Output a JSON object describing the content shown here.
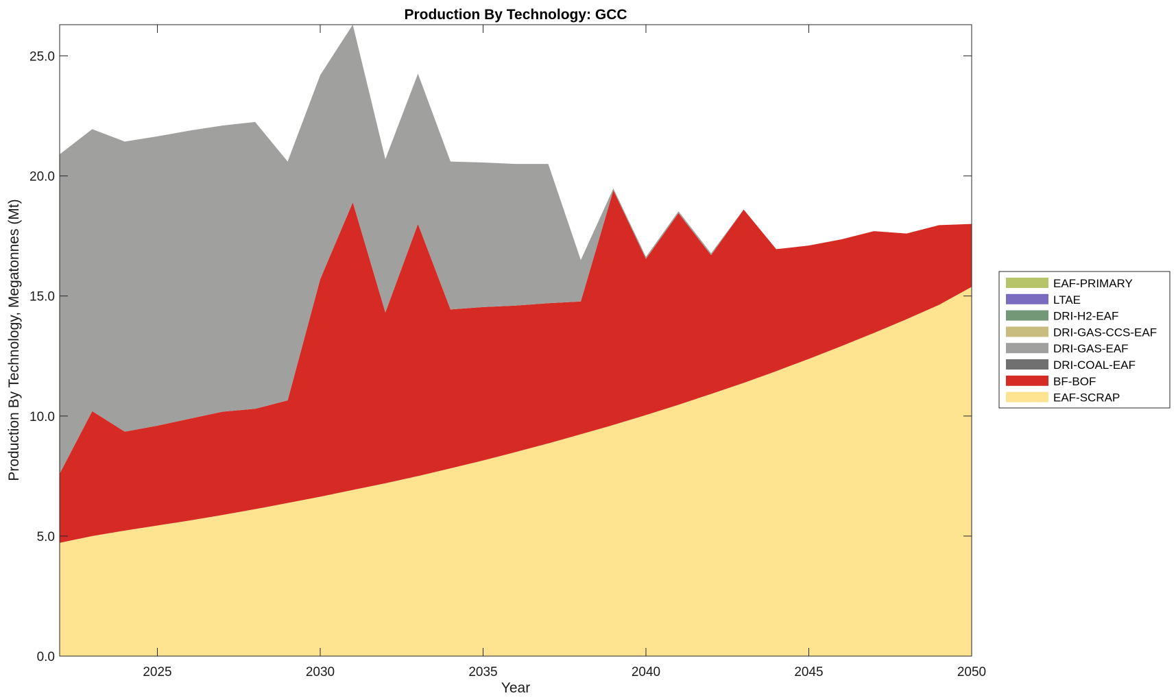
{
  "chart_data": {
    "type": "area",
    "stacked": true,
    "title": "Production By Technology: GCC",
    "xlabel": "Year",
    "ylabel": "Production By Technology, Megatonnes (Mt)",
    "xlim": [
      2022,
      2050
    ],
    "ylim": [
      0,
      26.3
    ],
    "xticks": [
      2025,
      2030,
      2035,
      2040,
      2045,
      2050
    ],
    "xtick_labels": [
      "2025",
      "2030",
      "2035",
      "2040",
      "2045",
      "2050"
    ],
    "yticks": [
      0,
      5,
      10,
      15,
      20,
      25
    ],
    "ytick_labels": [
      "0.0",
      "5.0",
      "10.0",
      "15.0",
      "20.0",
      "25.0"
    ],
    "legend_position": "right",
    "x": [
      2022,
      2023,
      2024,
      2025,
      2026,
      2027,
      2028,
      2029,
      2030,
      2031,
      2032,
      2033,
      2034,
      2035,
      2036,
      2037,
      2038,
      2039,
      2040,
      2041,
      2042,
      2043,
      2044,
      2045,
      2046,
      2047,
      2048,
      2049,
      2050
    ],
    "series": [
      {
        "name": "EAF-SCRAP",
        "color": "#fee391",
        "values": [
          4.72,
          5.0,
          5.23,
          5.44,
          5.65,
          5.88,
          6.12,
          6.38,
          6.64,
          6.92,
          7.2,
          7.5,
          7.82,
          8.15,
          8.5,
          8.86,
          9.24,
          9.63,
          10.04,
          10.47,
          10.92,
          11.38,
          11.87,
          12.38,
          12.91,
          13.46,
          14.03,
          14.63,
          15.38
        ]
      },
      {
        "name": "BF-BOF",
        "color": "#d52b24",
        "values": [
          2.88,
          5.2,
          4.12,
          4.16,
          4.24,
          4.3,
          4.18,
          4.27,
          9.06,
          11.98,
          7.11,
          10.5,
          6.62,
          6.39,
          6.1,
          5.84,
          5.53,
          9.77,
          6.51,
          7.98,
          5.78,
          7.22,
          5.08,
          4.72,
          4.45,
          4.24,
          3.57,
          3.32,
          2.62
        ]
      },
      {
        "name": "DRI-COAL-EAF",
        "color": "#707070",
        "values": [
          0,
          0,
          0,
          0,
          0,
          0,
          0,
          0,
          0,
          0,
          0,
          0,
          0,
          0,
          0,
          0,
          0,
          0,
          0,
          0,
          0,
          0,
          0,
          0,
          0,
          0,
          0,
          0,
          0
        ]
      },
      {
        "name": "DRI-GAS-EAF",
        "color": "#a0a09e",
        "values": [
          13.3,
          11.75,
          12.08,
          12.05,
          12.0,
          11.92,
          11.95,
          9.95,
          8.5,
          7.4,
          6.39,
          6.26,
          6.16,
          6.02,
          5.9,
          5.8,
          1.73,
          0.08,
          0.08,
          0.08,
          0.08,
          0,
          0,
          0,
          0,
          0,
          0,
          0,
          0
        ]
      },
      {
        "name": "DRI-GAS-CCS-EAF",
        "color": "#c8bc7e",
        "values": [
          0,
          0,
          0,
          0,
          0,
          0,
          0,
          0,
          0,
          0,
          0,
          0,
          0,
          0,
          0,
          0,
          0,
          0,
          0,
          0,
          0,
          0,
          0,
          0,
          0,
          0,
          0,
          0,
          0
        ]
      },
      {
        "name": "DRI-H2-EAF",
        "color": "#729877",
        "values": [
          0,
          0,
          0,
          0,
          0,
          0,
          0,
          0,
          0,
          0,
          0,
          0,
          0,
          0,
          0,
          0,
          0,
          0,
          0,
          0,
          0,
          0,
          0,
          0,
          0,
          0,
          0,
          0,
          0
        ]
      },
      {
        "name": "LTAE",
        "color": "#7b6cc0",
        "values": [
          0,
          0,
          0,
          0,
          0,
          0,
          0,
          0,
          0,
          0,
          0,
          0,
          0,
          0,
          0,
          0,
          0,
          0,
          0,
          0,
          0,
          0,
          0,
          0,
          0,
          0,
          0,
          0,
          0
        ]
      },
      {
        "name": "EAF-PRIMARY",
        "color": "#b8c46a",
        "values": [
          0,
          0,
          0,
          0,
          0,
          0,
          0,
          0,
          0,
          0,
          0,
          0,
          0,
          0,
          0,
          0,
          0,
          0,
          0,
          0,
          0,
          0,
          0,
          0,
          0,
          0,
          0,
          0,
          0
        ]
      }
    ],
    "legend_order": [
      "EAF-PRIMARY",
      "LTAE",
      "DRI-H2-EAF",
      "DRI-GAS-CCS-EAF",
      "DRI-GAS-EAF",
      "DRI-COAL-EAF",
      "BF-BOF",
      "EAF-SCRAP"
    ]
  }
}
